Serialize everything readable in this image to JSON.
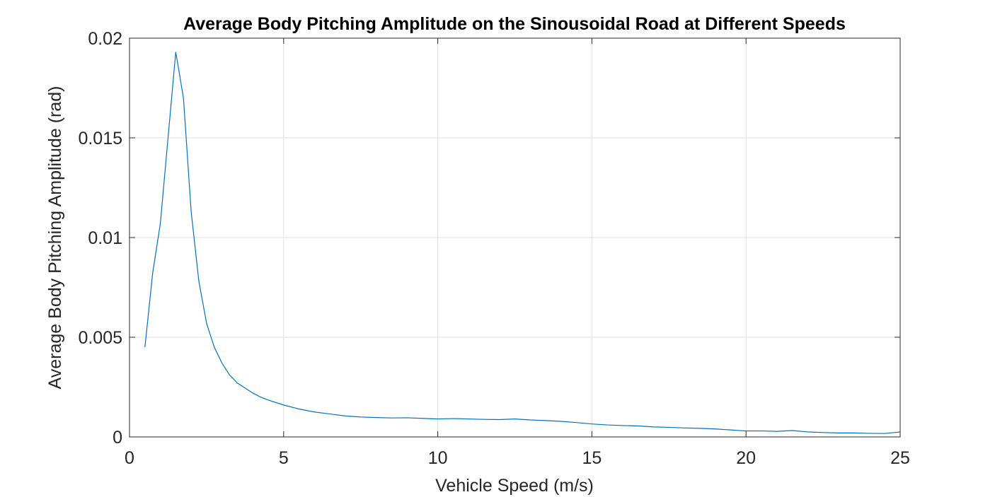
{
  "chart_data": {
    "type": "line",
    "title": "Average Body Pitching Amplitude on the Sinousoidal Road at Different Speeds",
    "xlabel": "Vehicle Speed (m/s)",
    "ylabel": "Average Body Pitching Amplitude (rad)",
    "xlim": [
      0,
      25
    ],
    "ylim": [
      0,
      0.02
    ],
    "xticks": [
      0,
      5,
      10,
      15,
      20,
      25
    ],
    "xtick_labels": [
      "0",
      "5",
      "10",
      "15",
      "20",
      "25"
    ],
    "yticks": [
      0,
      0.005,
      0.01,
      0.015,
      0.02
    ],
    "ytick_labels": [
      "0",
      "0.005",
      "0.01",
      "0.015",
      "0.02"
    ],
    "grid": true,
    "line_color": "#0072BD",
    "series": [
      {
        "x": [
          0.5,
          0.75,
          1.0,
          1.25,
          1.5,
          1.75,
          2.0,
          2.25,
          2.5,
          2.75,
          3.0,
          3.25,
          3.5,
          3.75,
          4.0,
          4.25,
          4.5,
          5.0,
          5.5,
          6.0,
          6.5,
          7.0,
          7.5,
          8.0,
          8.5,
          9.0,
          9.5,
          10.0,
          10.5,
          11.0,
          11.5,
          12.0,
          12.5,
          13.0,
          13.5,
          14.0,
          14.5,
          15.0,
          15.5,
          16.0,
          16.5,
          17.0,
          17.5,
          18.0,
          18.5,
          19.0,
          19.5,
          20.0,
          20.5,
          21.0,
          21.5,
          22.0,
          22.5,
          23.0,
          23.5,
          24.0,
          24.5,
          25.0
        ],
        "y": [
          0.0045,
          0.0082,
          0.0107,
          0.015,
          0.0193,
          0.017,
          0.0113,
          0.0078,
          0.0057,
          0.0045,
          0.0037,
          0.0031,
          0.0027,
          0.00245,
          0.0022,
          0.002,
          0.00185,
          0.0016,
          0.0014,
          0.00125,
          0.00115,
          0.00105,
          0.001,
          0.00097,
          0.00095,
          0.00096,
          0.00093,
          0.0009,
          0.00092,
          0.0009,
          0.00088,
          0.00087,
          0.0009,
          0.00085,
          0.00082,
          0.00078,
          0.00072,
          0.00065,
          0.0006,
          0.00057,
          0.00055,
          0.0005,
          0.00048,
          0.00045,
          0.00043,
          0.0004,
          0.00035,
          0.0003,
          0.0003,
          0.00028,
          0.00032,
          0.00025,
          0.00022,
          0.0002,
          0.0002,
          0.00018,
          0.00017,
          0.00025
        ]
      }
    ]
  }
}
